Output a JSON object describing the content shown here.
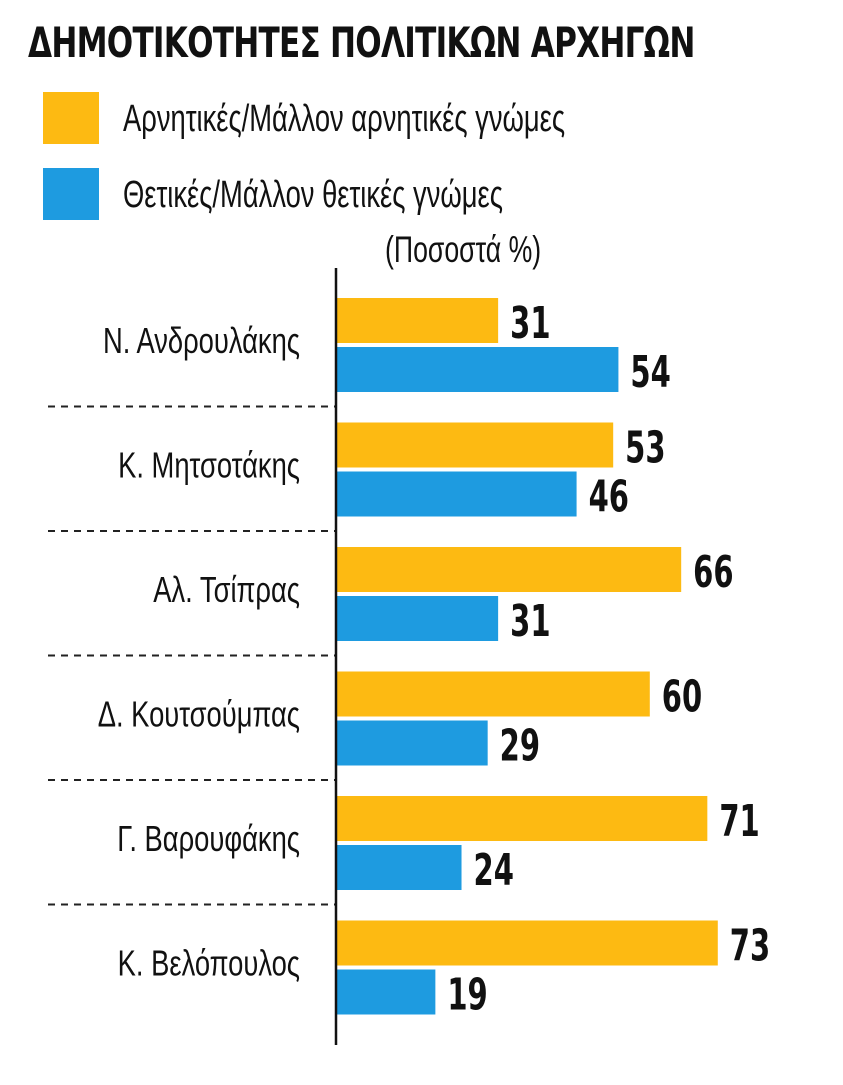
{
  "title": "ΔΗΜΟΤΙΚΟΤΗΤΕΣ ΠΟΛΙΤΙΚΩΝ ΑΡΧΗΓΩΝ",
  "legend": [
    {
      "label": "Αρνητικές/Μάλλον αρνητικές γνώμες",
      "color": "#FDBA12"
    },
    {
      "label": "Θετικές/Μάλλον θετικές γνώμες",
      "color": "#1E9BE0"
    }
  ],
  "unit_label": "(Ποσοστά %)",
  "chart_data": {
    "type": "bar",
    "orientation": "horizontal",
    "categories": [
      "Ν. Ανδρουλάκης",
      "Κ. Μητσοτάκης",
      "Αλ. Τσίπρας",
      "Δ. Κουτσούμπας",
      "Γ. Βαρουφάκης",
      "Κ. Βελόπουλος"
    ],
    "series": [
      {
        "name": "Αρνητικές/Μάλλον αρνητικές γνώμες",
        "color": "#FDBA12",
        "values": [
          31,
          53,
          66,
          60,
          71,
          73
        ]
      },
      {
        "name": "Θετικές/Μάλλον θετικές γνώμες",
        "color": "#1E9BE0",
        "values": [
          54,
          46,
          31,
          29,
          24,
          19
        ]
      }
    ],
    "data_labels": true,
    "grid": false,
    "legend_position": "top-left"
  }
}
